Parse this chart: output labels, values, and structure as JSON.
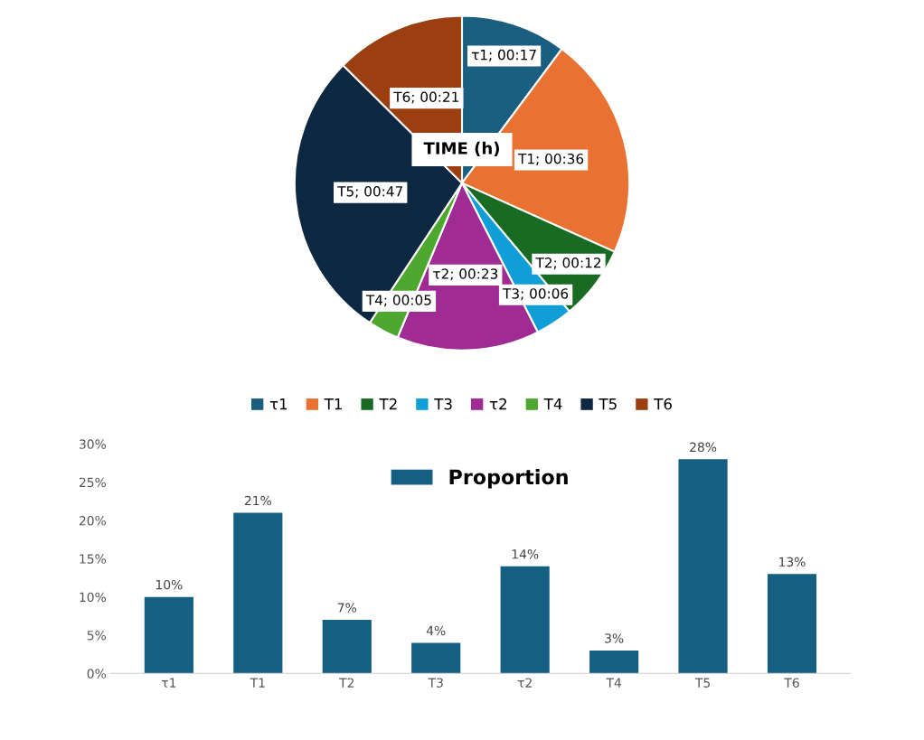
{
  "chart_data": [
    {
      "type": "pie",
      "title": "TIME (h)",
      "categories": [
        "τ1",
        "T1",
        "T2",
        "T3",
        "τ2",
        "T4",
        "T5",
        "T6"
      ],
      "values": [
        17,
        36,
        12,
        6,
        23,
        5,
        47,
        21
      ],
      "value_labels": [
        "τ1; 00:17",
        "T1; 00:36",
        "T2; 00:12",
        "T3; 00:06",
        "τ2; 00:23",
        "T4; 00:05",
        "T5; 00:47",
        "T6; 00:21"
      ],
      "colors": [
        "#1a5e80",
        "#e97132",
        "#196b24",
        "#0f9ed5",
        "#a02b93",
        "#4ea72e",
        "#0e2841",
        "#9b3f10"
      ],
      "legend": "bottom"
    },
    {
      "type": "bar",
      "categories": [
        "τ1",
        "T1",
        "T2",
        "T3",
        "τ2",
        "T4",
        "T5",
        "T6"
      ],
      "series": [
        {
          "name": "Proportion",
          "color": "#156082",
          "values": [
            10,
            21,
            7,
            4,
            14,
            3,
            28,
            13
          ],
          "value_labels": [
            "10%",
            "21%",
            "7%",
            "4%",
            "14%",
            "3%",
            "28%",
            "13%"
          ]
        }
      ],
      "ylim": [
        0,
        30
      ],
      "yticks": [
        {
          "value": 0,
          "label": "0%"
        },
        {
          "value": 5,
          "label": "5%"
        },
        {
          "value": 10,
          "label": "10%"
        },
        {
          "value": 15,
          "label": "15%"
        },
        {
          "value": 20,
          "label": "20%"
        },
        {
          "value": 25,
          "label": "25%"
        },
        {
          "value": 30,
          "label": "30%"
        }
      ],
      "grid": false,
      "legend": "top"
    }
  ]
}
